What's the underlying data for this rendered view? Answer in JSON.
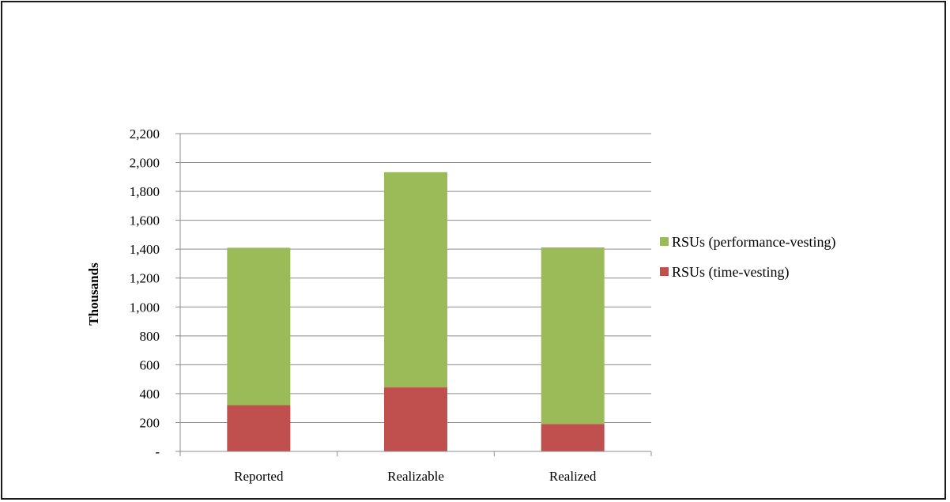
{
  "chart_data": {
    "type": "bar",
    "stacked": true,
    "categories": [
      "Reported",
      "Realizable",
      "Realized"
    ],
    "series": [
      {
        "name": "RSUs (time-vesting)",
        "values": [
          320,
          443,
          190
        ],
        "color": "#C0504D"
      },
      {
        "name": "RSUs (performance-vesting)",
        "values": [
          1090,
          1490,
          1222
        ],
        "color": "#9BBB59"
      }
    ],
    "title": "",
    "xlabel": "",
    "ylabel": "Thousands",
    "ylim": [
      0,
      2200
    ],
    "yticks": [
      0,
      200,
      400,
      600,
      800,
      1000,
      1200,
      1400,
      1600,
      1800,
      2000,
      2200
    ],
    "ytick_labels": [
      "-",
      "200",
      "400",
      "600",
      "800",
      "1,000",
      "1,200",
      "1,400",
      "1,600",
      "1,800",
      "2,000",
      "2,200"
    ],
    "grid": true,
    "gridline_color": "#8c8c8c",
    "legend_position": "right",
    "legend_order": [
      "RSUs (performance-vesting)",
      "RSUs (time-vesting)"
    ]
  }
}
